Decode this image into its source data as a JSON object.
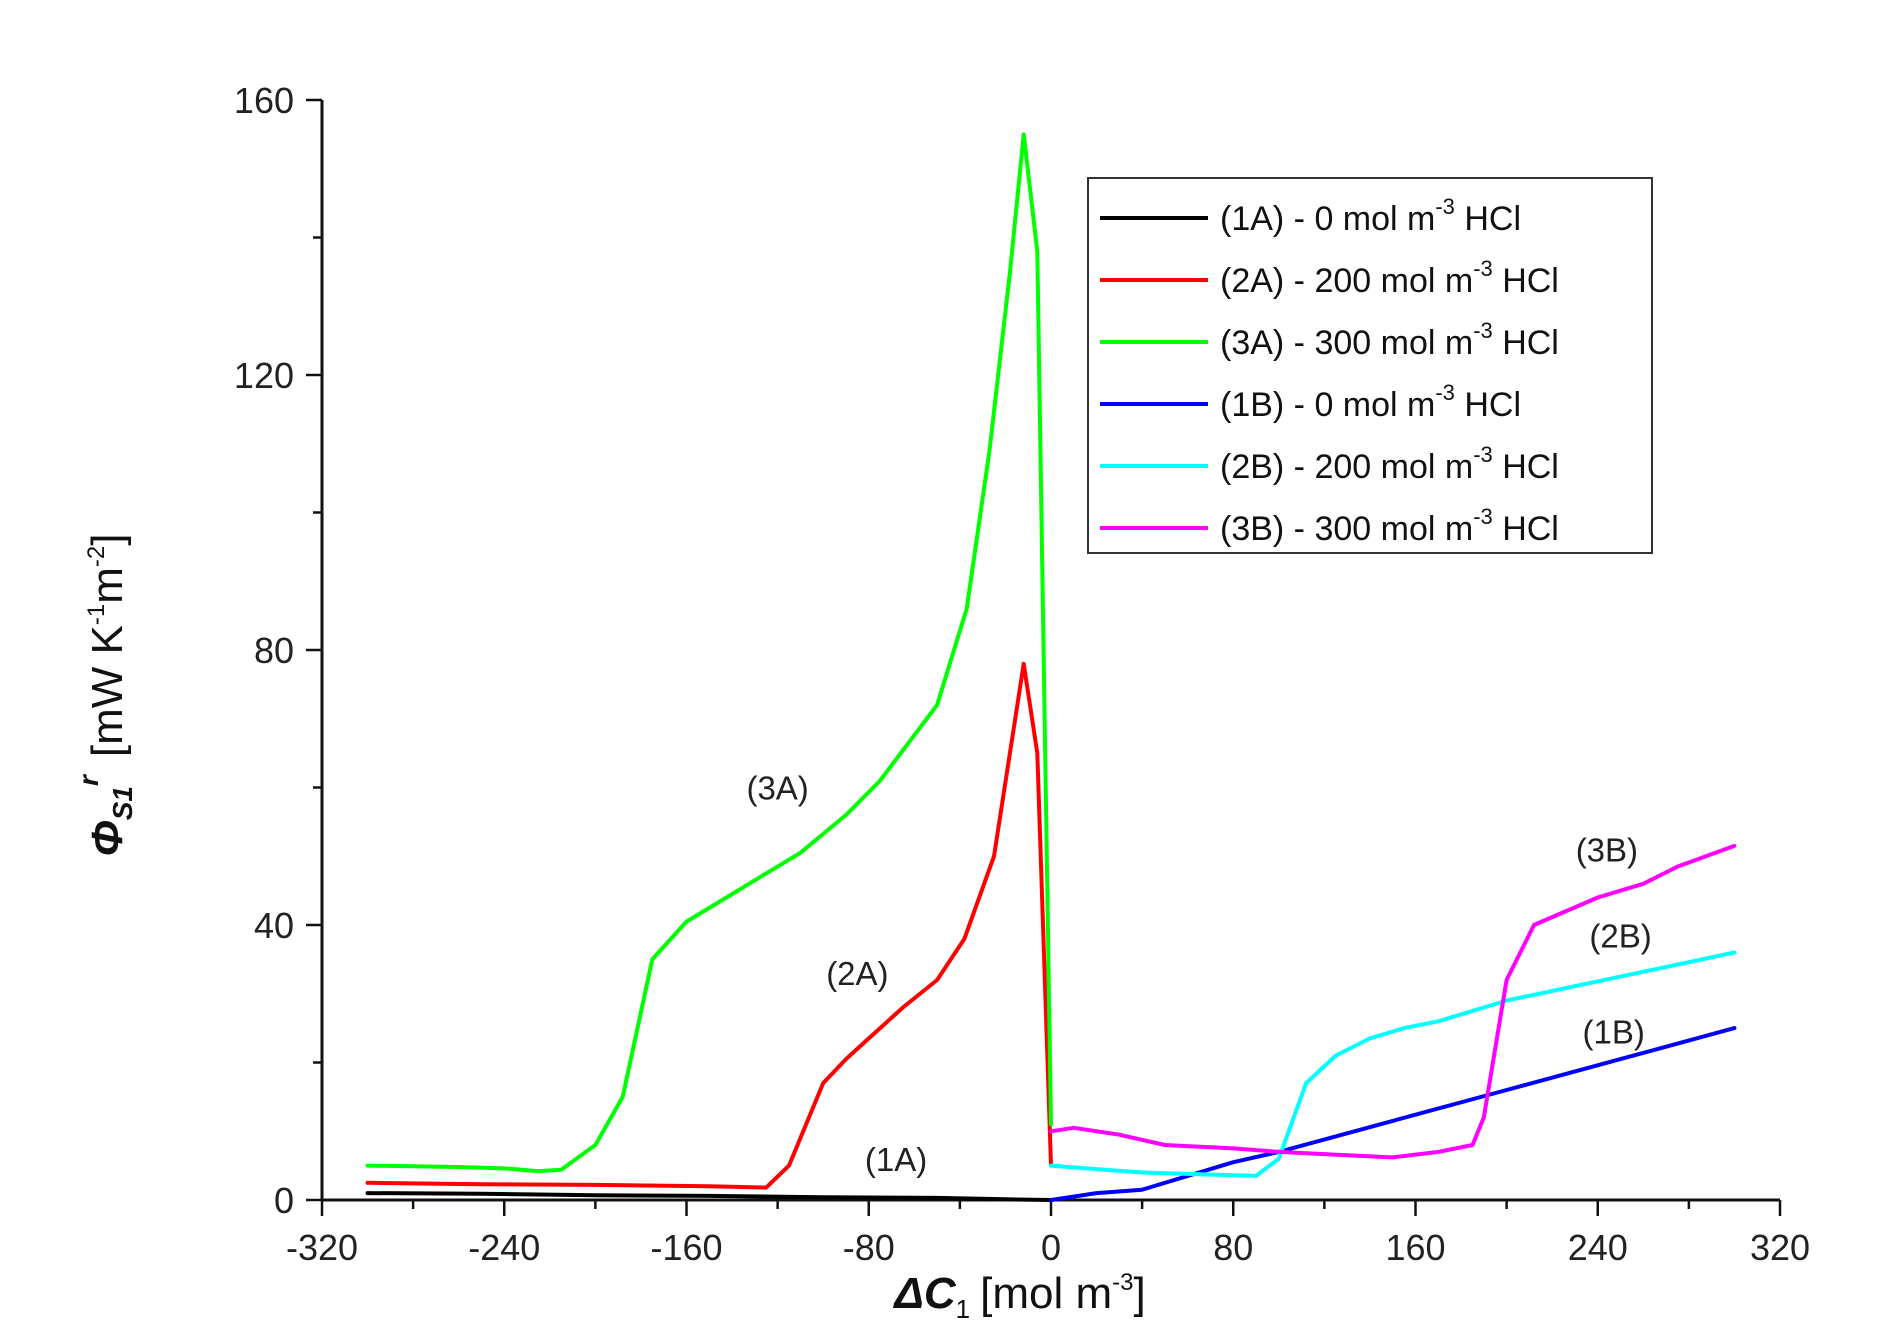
{
  "chart_data": {
    "type": "line",
    "title": "",
    "xlabel": {
      "symbol": "ΔC",
      "sub": "1",
      "unit": "[mol m",
      "sup": "-3",
      "close": "]"
    },
    "ylabel": {
      "symbol": "Φ",
      "sub": "S1",
      "sup": "r",
      "unit_a": "[mW K",
      "sup1": "-1",
      "unit_b": "m",
      "sup2": "-2",
      "close": "]"
    },
    "xlim": [
      -320,
      320
    ],
    "ylim": [
      0,
      160
    ],
    "xticks": [
      -320,
      -240,
      -160,
      -80,
      0,
      80,
      160,
      240,
      320
    ],
    "yticks": [
      0,
      40,
      80,
      120,
      160
    ],
    "legend_position": "top-right",
    "series": [
      {
        "name": "(1A) - 0 mol m-3 HCl",
        "legend": {
          "pre": "(1A) - 0 mol m",
          "sup": "-3",
          "post": " HCl"
        },
        "color": "#000000",
        "x": [
          -300,
          -250,
          -200,
          -150,
          -100,
          -50,
          -20,
          0
        ],
        "y": [
          1.0,
          0.9,
          0.7,
          0.6,
          0.4,
          0.3,
          0.1,
          0.0
        ]
      },
      {
        "name": "(2A) - 200 mol m-3 HCl",
        "legend": {
          "pre": "(2A) - 200 mol m",
          "sup": "-3",
          "post": " HCl"
        },
        "color": "#ff0000",
        "x": [
          -300,
          -250,
          -200,
          -150,
          -125,
          -115,
          -100,
          -90,
          -80,
          -65,
          -50,
          -38,
          -25,
          -12,
          -6,
          0
        ],
        "y": [
          2.5,
          2.3,
          2.2,
          2.0,
          1.8,
          5.0,
          17.0,
          20.5,
          23.5,
          28.0,
          32.0,
          38.0,
          50.0,
          78.0,
          65.0,
          5.0
        ]
      },
      {
        "name": "(3A) - 300 mol m-3 HCl",
        "legend": {
          "pre": "(3A) - 300 mol m",
          "sup": "-3",
          "post": " HCl"
        },
        "color": "#00ff00",
        "x": [
          -300,
          -260,
          -240,
          -225,
          -215,
          -200,
          -188,
          -175,
          -160,
          -140,
          -125,
          -110,
          -90,
          -75,
          -50,
          -37,
          -27,
          -18,
          -12,
          -6,
          0
        ],
        "y": [
          5.0,
          4.8,
          4.6,
          4.2,
          4.4,
          8.0,
          15.0,
          35.0,
          40.5,
          44.5,
          47.5,
          50.5,
          56.0,
          61.0,
          72.0,
          86.0,
          109.0,
          135.0,
          155.0,
          138.0,
          11.0
        ]
      },
      {
        "name": "(1B) - 0 mol m-3 HCl",
        "legend": {
          "pre": "(1B) - 0 mol m",
          "sup": "-3",
          "post": " HCl"
        },
        "color": "#0000ff",
        "x": [
          0,
          20,
          40,
          80,
          100,
          150,
          200,
          250,
          300
        ],
        "y": [
          0.0,
          1.0,
          1.5,
          5.5,
          7.0,
          11.5,
          16.0,
          20.5,
          25.0
        ]
      },
      {
        "name": "(2B) - 200 mol m-3 HCl",
        "legend": {
          "pre": "(2B) - 200 mol m",
          "sup": "-3",
          "post": " HCl"
        },
        "color": "#00ffff",
        "x": [
          0,
          20,
          40,
          60,
          90,
          100,
          112,
          125,
          140,
          155,
          170,
          190,
          200,
          250,
          300
        ],
        "y": [
          5.0,
          4.5,
          4.0,
          3.8,
          3.5,
          6.0,
          17.0,
          21.0,
          23.5,
          25.0,
          26.0,
          28.0,
          29.0,
          32.5,
          36.0
        ]
      },
      {
        "name": "(3B) - 300 mol m-3 HCl",
        "legend": {
          "pre": "(3B) - 300 mol m",
          "sup": "-3",
          "post": " HCl"
        },
        "color": "#ff00ff",
        "x": [
          0,
          10,
          30,
          50,
          80,
          100,
          130,
          150,
          170,
          185,
          190,
          200,
          212,
          240,
          260,
          275,
          300
        ],
        "y": [
          10.0,
          10.5,
          9.5,
          8.0,
          7.5,
          7.0,
          6.5,
          6.2,
          7.0,
          8.0,
          12.0,
          32.0,
          40.0,
          44.0,
          46.0,
          48.5,
          51.5
        ]
      }
    ],
    "annotations": [
      {
        "text": "(3A)",
        "x": -120,
        "y": 60
      },
      {
        "text": "(2A)",
        "x": -85,
        "y": 33
      },
      {
        "text": "(1A)",
        "x": -68,
        "y": 6
      },
      {
        "text": "(3B)",
        "x": 244,
        "y": 51
      },
      {
        "text": "(2B)",
        "x": 250,
        "y": 38.5
      },
      {
        "text": "(1B)",
        "x": 247,
        "y": 24.5
      }
    ]
  }
}
